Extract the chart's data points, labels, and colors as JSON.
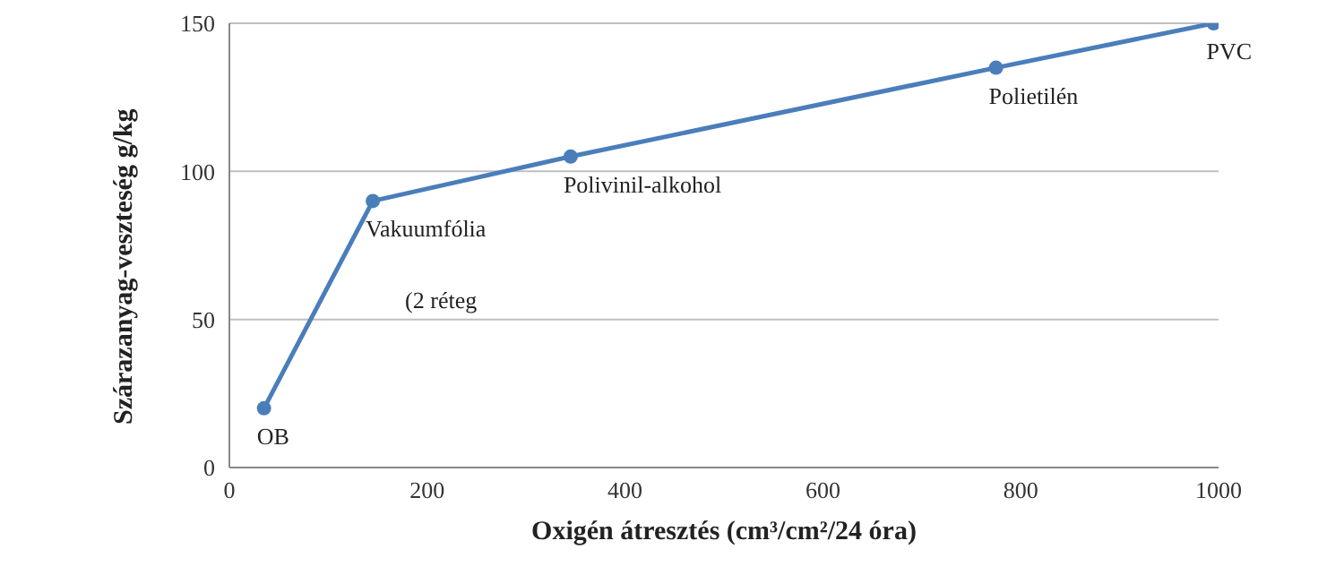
{
  "chart_data": {
    "type": "line",
    "xlabel": "Oxigén átresztés (cm³/cm²/24 óra)",
    "ylabel": "Szárazanyag-veszteség g/kg",
    "x": [
      35,
      145,
      345,
      775,
      995
    ],
    "series": [
      {
        "color": "#4a7ebb",
        "values": [
          20,
          90,
          105,
          135,
          150
        ]
      }
    ],
    "xlim": [
      0,
      1000
    ],
    "xticks": [
      0,
      200,
      400,
      600,
      800,
      1000
    ],
    "ylim": [
      0,
      150
    ],
    "yticks": [
      0,
      50,
      100,
      150
    ],
    "grid": "y",
    "legend": false,
    "marker": "circle",
    "line_style": "solid",
    "annotations": [
      {
        "text": "OB",
        "x": 35,
        "y": 20
      },
      {
        "text": "Vakuumfólia",
        "x": 145,
        "y": 90
      },
      "(2 réteg",
      {
        "text": "Polivinil-alkohol",
        "x": 345,
        "y": 105
      },
      {
        "text": "Polietilén",
        "x": 775,
        "y": 135
      },
      {
        "text": "PVC",
        "x": 995,
        "y": 150
      }
    ]
  }
}
